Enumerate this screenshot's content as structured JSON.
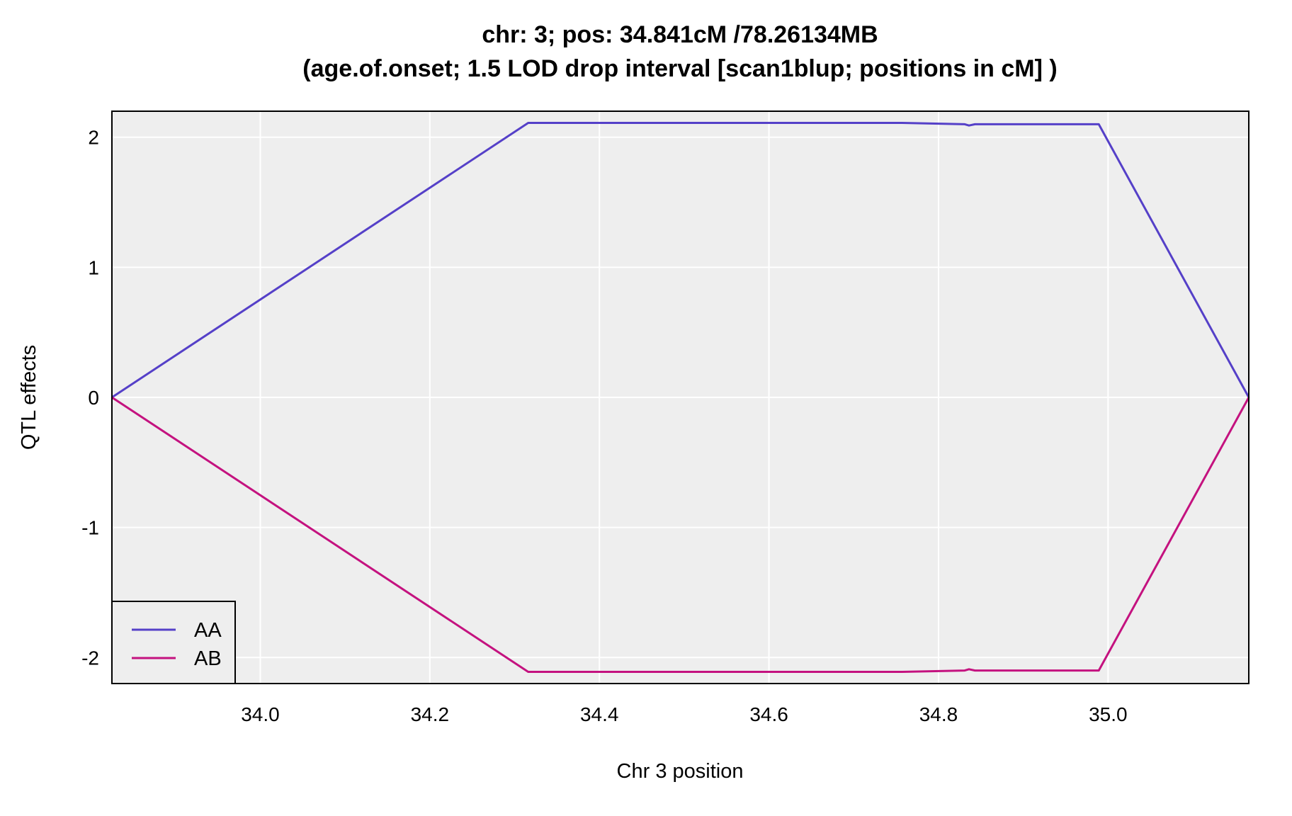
{
  "chart_data": {
    "type": "line",
    "title_line1": "chr: 3; pos: 34.841cM /78.26134MB",
    "title_line2": "(age.of.onset; 1.5 LOD drop interval [scan1blup; positions in cM] )",
    "xlabel": "Chr 3 position",
    "ylabel": "QTL effects",
    "xlim": [
      33.825,
      35.166
    ],
    "ylim": [
      -2.2,
      2.2
    ],
    "xticks": [
      34.0,
      34.2,
      34.4,
      34.6,
      34.8,
      35.0
    ],
    "xtick_labels": [
      "34.0",
      "34.2",
      "34.4",
      "34.6",
      "34.8",
      "35.0"
    ],
    "yticks": [
      2,
      1,
      0,
      -1,
      -2
    ],
    "ytick_labels": [
      "2",
      "1",
      "0",
      "-1",
      "-2"
    ],
    "grid": true,
    "legend_position": "bottom-left",
    "series": [
      {
        "name": "AA",
        "color": "#5540C8",
        "points": [
          [
            33.825,
            0.0
          ],
          [
            34.316,
            2.11
          ],
          [
            34.757,
            2.11
          ],
          [
            34.831,
            2.1
          ],
          [
            34.836,
            2.09
          ],
          [
            34.843,
            2.1
          ],
          [
            34.989,
            2.1
          ],
          [
            35.166,
            0.0
          ]
        ]
      },
      {
        "name": "AB",
        "color": "#C4127F",
        "points": [
          [
            33.825,
            0.0
          ],
          [
            34.316,
            -2.11
          ],
          [
            34.757,
            -2.11
          ],
          [
            34.831,
            -2.1
          ],
          [
            34.836,
            -2.09
          ],
          [
            34.843,
            -2.1
          ],
          [
            34.989,
            -2.1
          ],
          [
            35.166,
            0.0
          ]
        ]
      }
    ]
  }
}
